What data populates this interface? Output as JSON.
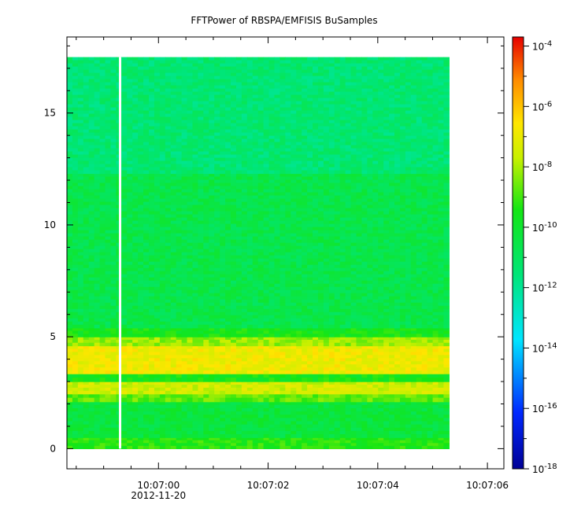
{
  "chart_data": {
    "type": "heatmap",
    "title": "FFTPower of RBSPA/EMFISIS  BuSamples",
    "xlabel": "",
    "ylabel": "",
    "x_ticks": [
      {
        "label": "10:07:00",
        "sublabel": "2012-11-20",
        "t": 0
      },
      {
        "label": "10:07:02",
        "sublabel": "",
        "t": 2
      },
      {
        "label": "10:07:04",
        "sublabel": "",
        "t": 4
      },
      {
        "label": "10:07:06",
        "sublabel": "",
        "t": 6
      }
    ],
    "x_range_seconds_rel_10_07_00": [
      -1.67,
      6.3
    ],
    "data_x_range_seconds_rel_10_07_00": [
      -1.67,
      5.3
    ],
    "data_gap_seconds_rel_10_07_00": -0.7,
    "y_ticks": [
      0,
      5,
      10,
      15
    ],
    "ylim": [
      -0.9,
      18.4
    ],
    "data_ylim": [
      0,
      17.5
    ],
    "colorbar": {
      "scale": "log",
      "range": [
        1e-18,
        0.0002
      ],
      "tick_labels": [
        {
          "base": "10",
          "exp": "-4",
          "value": -4
        },
        {
          "base": "10",
          "exp": "-6",
          "value": -6
        },
        {
          "base": "10",
          "exp": "-8",
          "value": -8
        },
        {
          "base": "10",
          "exp": "-10",
          "value": -10
        },
        {
          "base": "10",
          "exp": "-12",
          "value": -12
        },
        {
          "base": "10",
          "exp": "-14",
          "value": -14
        },
        {
          "base": "10",
          "exp": "-16",
          "value": -16
        },
        {
          "base": "10",
          "exp": "-18",
          "value": -18
        }
      ]
    },
    "bands": [
      {
        "y0": 0,
        "y1": 0.5,
        "log_power": -9.3
      },
      {
        "y0": 0.5,
        "y1": 2.1,
        "log_power": -10.3
      },
      {
        "y0": 2.1,
        "y1": 2.45,
        "log_power": -8.7
      },
      {
        "y0": 2.45,
        "y1": 3.0,
        "log_power": -7.5
      },
      {
        "y0": 3.0,
        "y1": 3.35,
        "log_power": -9.6
      },
      {
        "y0": 3.35,
        "y1": 4.6,
        "log_power": -6.9
      },
      {
        "y0": 4.6,
        "y1": 5.0,
        "log_power": -8.2
      },
      {
        "y0": 5.0,
        "y1": 5.4,
        "log_power": -9.6
      },
      {
        "y0": 5.4,
        "y1": 12.3,
        "log_power": -10.6
      },
      {
        "y0": 12.3,
        "y1": 17.5,
        "log_power": -11.4
      }
    ]
  }
}
